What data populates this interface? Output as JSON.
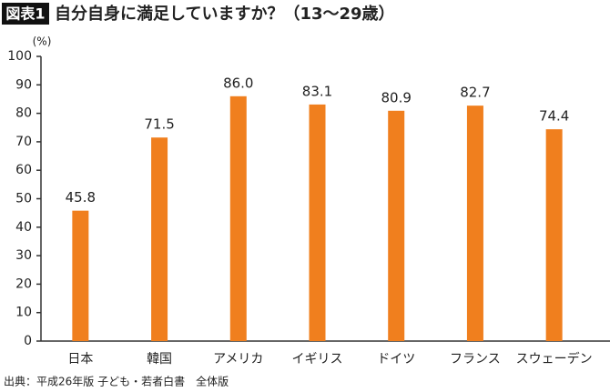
{
  "chart_data": {
    "type": "bar",
    "label": "図表1",
    "title": "自分自身に満足していますか？（13〜29歳）",
    "y_unit": "(%)",
    "source": "出典：平成26年版 子ども・若者白書　全体版",
    "categories": [
      "日本",
      "韓国",
      "アメリカ",
      "イギリス",
      "ドイツ",
      "フランス",
      "スウェーデン"
    ],
    "values": [
      45.8,
      71.5,
      86.0,
      83.1,
      80.9,
      82.7,
      74.4
    ],
    "value_labels": [
      "45.8",
      "71.5",
      "86.0",
      "83.1",
      "80.9",
      "82.7",
      "74.4"
    ],
    "color": "#f07f1e",
    "ylim": [
      0,
      100
    ],
    "yticks": [
      0,
      10,
      20,
      30,
      40,
      50,
      60,
      70,
      80,
      90,
      100
    ],
    "grid": false
  }
}
